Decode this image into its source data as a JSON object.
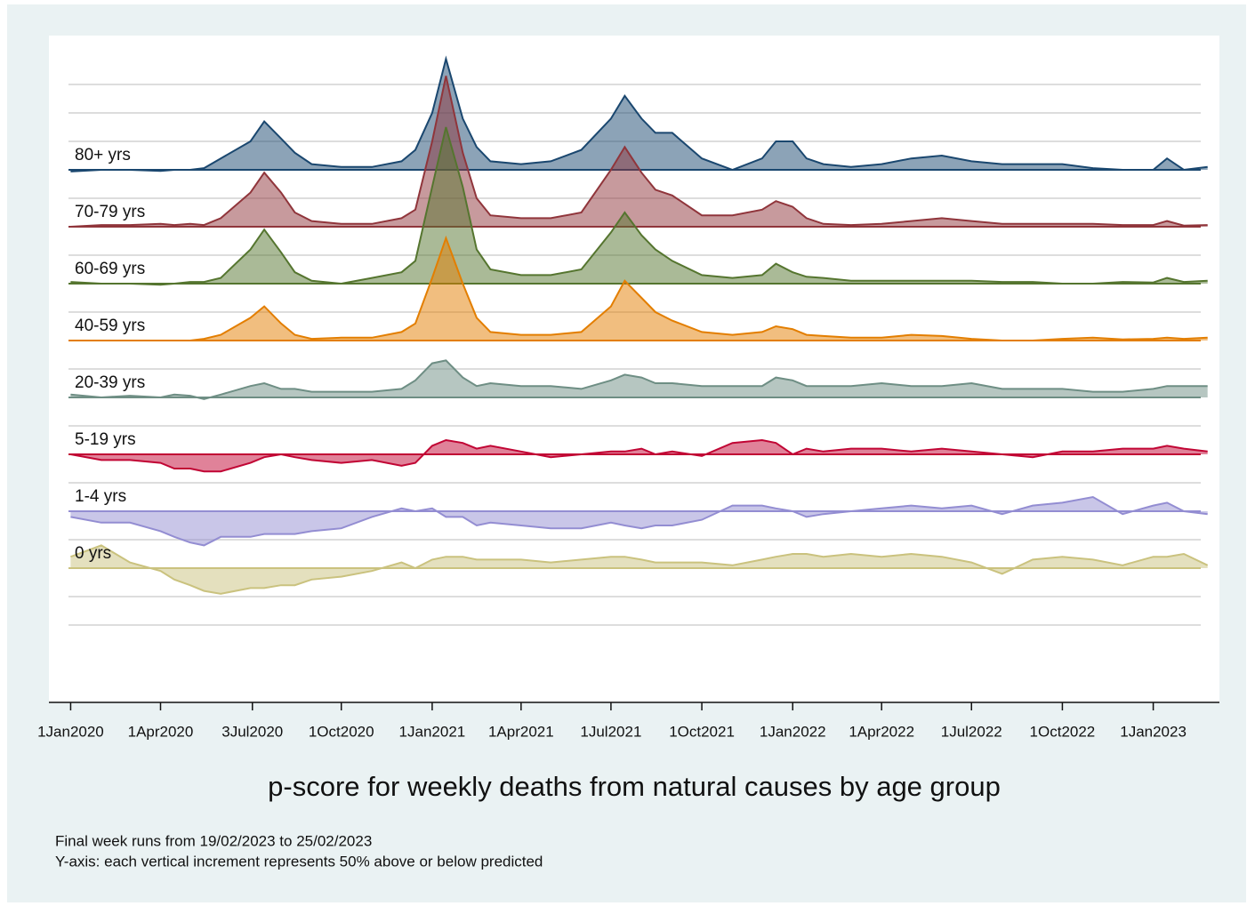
{
  "chart_data": {
    "type": "ridgeline",
    "title": "p-score for weekly deaths from natural causes by age group",
    "notes": [
      "Final week runs from 19/02/2023 to 25/02/2023",
      "Y-axis: each vertical increment represents 50% above or below predicted"
    ],
    "grid": true,
    "xlim": [
      "2019-12-10",
      "2023-03-09"
    ],
    "xticks": [
      {
        "value": "2020-01-01",
        "label": "1Jan2020"
      },
      {
        "value": "2020-04-01",
        "label": "1Apr2020"
      },
      {
        "value": "2020-07-03",
        "label": "3Jul2020"
      },
      {
        "value": "2020-10-01",
        "label": "1Oct2020"
      },
      {
        "value": "2021-01-01",
        "label": "1Jan2021"
      },
      {
        "value": "2021-04-01",
        "label": "1Apr2021"
      },
      {
        "value": "2021-07-01",
        "label": "1Jul2021"
      },
      {
        "value": "2021-10-01",
        "label": "1Oct2021"
      },
      {
        "value": "2022-01-01",
        "label": "1Jan2022"
      },
      {
        "value": "2022-04-01",
        "label": "1Apr2022"
      },
      {
        "value": "2022-07-01",
        "label": "1Jul2022"
      },
      {
        "value": "2022-10-01",
        "label": "1Oct2022"
      },
      {
        "value": "2023-01-01",
        "label": "1Jan2023"
      }
    ],
    "x": [
      "2020-01-01",
      "2020-02-01",
      "2020-03-01",
      "2020-04-01",
      "2020-04-15",
      "2020-05-01",
      "2020-05-15",
      "2020-06-01",
      "2020-07-01",
      "2020-07-15",
      "2020-08-01",
      "2020-08-15",
      "2020-09-01",
      "2020-10-01",
      "2020-11-01",
      "2020-12-01",
      "2020-12-15",
      "2021-01-01",
      "2021-01-15",
      "2021-02-01",
      "2021-02-15",
      "2021-03-01",
      "2021-04-01",
      "2021-05-01",
      "2021-06-01",
      "2021-07-01",
      "2021-07-15",
      "2021-08-01",
      "2021-08-15",
      "2021-09-01",
      "2021-10-01",
      "2021-11-01",
      "2021-12-01",
      "2021-12-15",
      "2022-01-01",
      "2022-01-15",
      "2022-02-01",
      "2022-03-01",
      "2022-04-01",
      "2022-05-01",
      "2022-06-01",
      "2022-07-01",
      "2022-08-01",
      "2022-09-01",
      "2022-10-01",
      "2022-11-01",
      "2022-12-01",
      "2023-01-01",
      "2023-01-15",
      "2023-02-01",
      "2023-02-25"
    ],
    "series": [
      {
        "name": "80+ yrs",
        "color": "#1a476f",
        "values": [
          -3,
          0,
          0,
          -2,
          0,
          0,
          3,
          20,
          50,
          85,
          55,
          30,
          10,
          5,
          5,
          15,
          35,
          100,
          195,
          90,
          40,
          15,
          10,
          15,
          35,
          90,
          130,
          90,
          65,
          65,
          20,
          0,
          20,
          50,
          50,
          20,
          10,
          5,
          10,
          20,
          25,
          15,
          10,
          10,
          10,
          3,
          0,
          0,
          20,
          0,
          5
        ]
      },
      {
        "name": "70-79 yrs",
        "color": "#90353b",
        "values": [
          0,
          3,
          3,
          5,
          3,
          5,
          3,
          15,
          60,
          95,
          60,
          25,
          10,
          5,
          5,
          15,
          30,
          150,
          265,
          130,
          50,
          20,
          15,
          15,
          25,
          100,
          140,
          95,
          65,
          55,
          20,
          20,
          30,
          45,
          35,
          15,
          5,
          3,
          5,
          10,
          15,
          10,
          5,
          5,
          5,
          5,
          3,
          3,
          10,
          2,
          3
        ]
      },
      {
        "name": "60-69 yrs",
        "color": "#55752f",
        "values": [
          3,
          0,
          0,
          -2,
          0,
          3,
          3,
          10,
          60,
          95,
          55,
          20,
          5,
          0,
          10,
          20,
          40,
          170,
          275,
          170,
          60,
          25,
          15,
          15,
          25,
          90,
          125,
          85,
          60,
          40,
          15,
          10,
          15,
          35,
          20,
          12,
          10,
          5,
          5,
          5,
          5,
          5,
          3,
          3,
          0,
          0,
          3,
          2,
          10,
          3,
          5
        ]
      },
      {
        "name": "40-59 yrs",
        "color": "#e37e00",
        "values": [
          0,
          0,
          0,
          0,
          0,
          0,
          3,
          10,
          40,
          60,
          30,
          10,
          3,
          5,
          5,
          15,
          30,
          110,
          180,
          100,
          40,
          15,
          10,
          10,
          15,
          60,
          105,
          75,
          50,
          35,
          15,
          10,
          15,
          25,
          20,
          10,
          8,
          5,
          5,
          10,
          8,
          3,
          0,
          0,
          3,
          5,
          2,
          3,
          5,
          3,
          5
        ]
      },
      {
        "name": "20-39 yrs",
        "color": "#6e8e84",
        "values": [
          5,
          0,
          3,
          0,
          5,
          3,
          -3,
          5,
          20,
          25,
          15,
          15,
          10,
          10,
          10,
          15,
          30,
          60,
          65,
          35,
          20,
          25,
          20,
          20,
          15,
          30,
          40,
          35,
          25,
          25,
          20,
          20,
          20,
          35,
          30,
          20,
          20,
          20,
          25,
          20,
          20,
          25,
          15,
          15,
          15,
          10,
          10,
          15,
          20,
          20,
          20
        ]
      },
      {
        "name": "5-19 yrs",
        "color": "#c10534",
        "values": [
          0,
          -10,
          -10,
          -15,
          -25,
          -25,
          -30,
          -30,
          -15,
          -5,
          0,
          -5,
          -10,
          -15,
          -10,
          -20,
          -15,
          15,
          25,
          20,
          10,
          15,
          5,
          -5,
          0,
          5,
          5,
          10,
          0,
          5,
          -3,
          20,
          25,
          20,
          0,
          10,
          5,
          10,
          10,
          5,
          10,
          5,
          0,
          -5,
          5,
          5,
          10,
          10,
          15,
          10,
          5
        ]
      },
      {
        "name": "1-4 yrs",
        "color": "#938dd2",
        "values": [
          -10,
          -20,
          -20,
          -35,
          -45,
          -55,
          -60,
          -45,
          -45,
          -40,
          -40,
          -40,
          -35,
          -30,
          -10,
          5,
          0,
          5,
          -10,
          -10,
          -25,
          -20,
          -25,
          -30,
          -30,
          -20,
          -25,
          -30,
          -25,
          -25,
          -15,
          10,
          10,
          5,
          0,
          -10,
          -5,
          0,
          5,
          10,
          5,
          10,
          -5,
          10,
          15,
          25,
          -5,
          10,
          15,
          0,
          -5
        ]
      },
      {
        "name": "0 yrs",
        "color": "#cac27e",
        "values": [
          20,
          40,
          10,
          -5,
          -20,
          -30,
          -40,
          -45,
          -35,
          -35,
          -30,
          -30,
          -20,
          -15,
          -5,
          10,
          0,
          15,
          20,
          20,
          15,
          15,
          15,
          10,
          15,
          20,
          20,
          15,
          10,
          10,
          10,
          5,
          15,
          20,
          25,
          25,
          20,
          25,
          20,
          25,
          20,
          10,
          -10,
          15,
          20,
          15,
          5,
          20,
          20,
          25,
          5
        ]
      }
    ]
  }
}
